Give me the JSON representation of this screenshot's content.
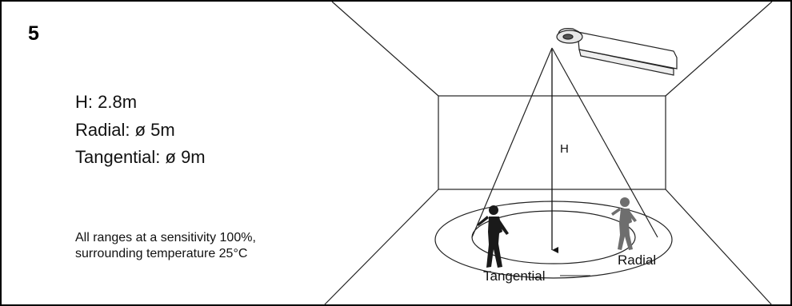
{
  "figure": {
    "number": "5"
  },
  "specs": {
    "height": "H: 2.8m",
    "radial": "Radial: ø 5m",
    "tangential": "Tangential: ø 9m"
  },
  "note": {
    "line1": "All ranges at a sensitivity 100%,",
    "line2": "surrounding temperature 25°C"
  },
  "diagram": {
    "height_label": "H",
    "radial_label": "Radial",
    "tangential_label": "Tangential"
  }
}
